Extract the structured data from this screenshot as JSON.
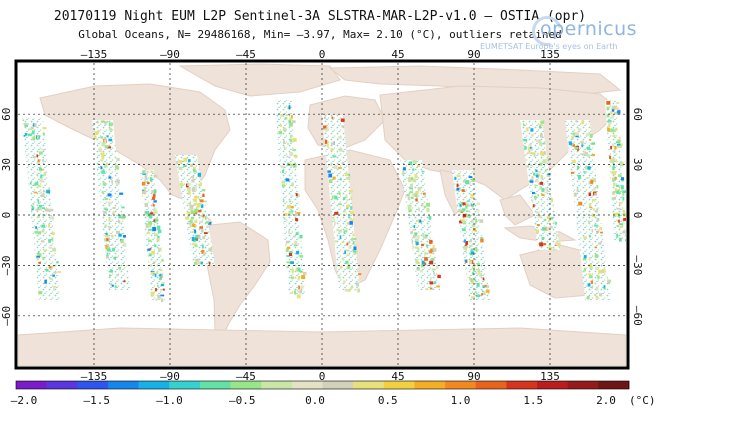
{
  "header": {
    "title_line1": "20170119 Night  EUM L2P  Sentinel-3A SLSTRA-MAR-L2P-v1.0 – OSTIA (opr)",
    "title_line2": "Global Oceans, N= 29486168, Min= –3.97, Max= 2.10 (°C), outliers retained"
  },
  "logo": {
    "word": "opernicus",
    "subtitle": "EUMETSAT  Europe's eyes on Earth"
  },
  "map": {
    "lon_ticks": [
      "–135",
      "–90",
      "–45",
      "0",
      "45",
      "90",
      "135"
    ],
    "lat_ticks": [
      "60",
      "30",
      "0",
      "–30",
      "–60"
    ],
    "land_color": "#efe2d8",
    "ocean_color": "#ffffff"
  },
  "colorbar": {
    "labels": [
      "–2.0",
      "–1.5",
      "–1.0",
      "–0.5",
      "0.0",
      "0.5",
      "1.0",
      "1.5",
      "2.0"
    ],
    "unit": "(°C)",
    "min": -2.0,
    "max": 2.0,
    "colors": [
      "#7a1cc9",
      "#5a35e0",
      "#2f55f0",
      "#1486ee",
      "#15b2e8",
      "#35d3d0",
      "#62e2a6",
      "#98e68a",
      "#c9e6a6",
      "#e3e3c4",
      "#d2d2b9",
      "#e8e07a",
      "#f2d040",
      "#f5ad24",
      "#f18820",
      "#e8641c",
      "#d6341d",
      "#bb1c1e",
      "#951a1b",
      "#6e1616"
    ]
  }
}
